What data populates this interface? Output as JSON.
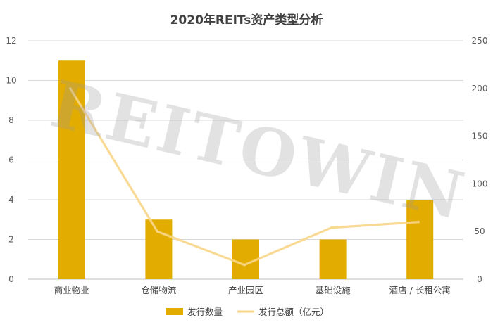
{
  "chart_data": {
    "type": "bar",
    "title": "2020年REITs资产类型分析",
    "categories": [
      "商业物业",
      "仓储物流",
      "产业园区",
      "基础设施",
      "酒店 / 长租公寓"
    ],
    "series": [
      {
        "name": "发行数量",
        "type": "bar",
        "axis": "left",
        "values": [
          11,
          3,
          2,
          2,
          4
        ],
        "color": "#E2AC00"
      },
      {
        "name": "发行总额（亿元）",
        "type": "line",
        "axis": "right",
        "values": [
          200,
          50,
          15,
          54,
          60
        ],
        "color": "#F8D68A"
      }
    ],
    "y_left": {
      "min": 0,
      "max": 12,
      "ticks": [
        0,
        2,
        4,
        6,
        8,
        10,
        12
      ]
    },
    "y_right": {
      "min": 0,
      "max": 250,
      "ticks": [
        0,
        50,
        100,
        150,
        200,
        250
      ]
    },
    "grid": true,
    "legend_position": "bottom"
  },
  "watermark": "REITOWIN"
}
